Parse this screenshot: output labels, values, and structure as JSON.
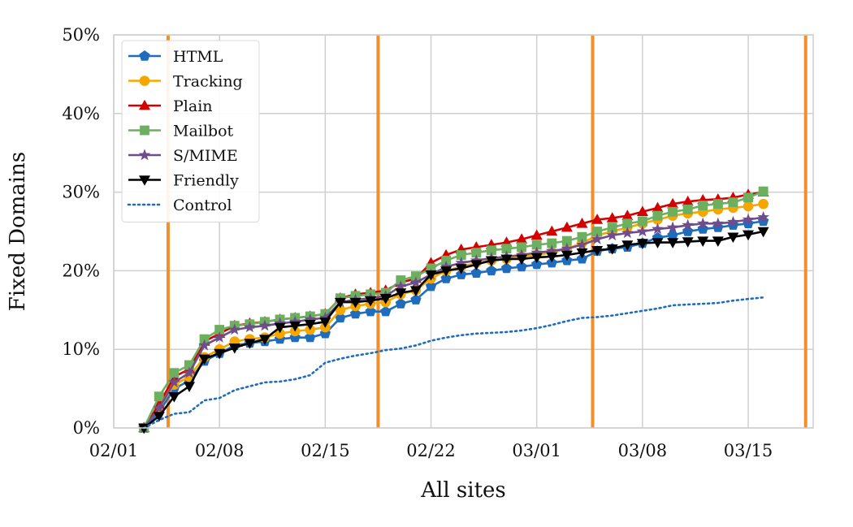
{
  "chart_data": {
    "type": "line",
    "title": "",
    "xlabel": "All sites",
    "ylabel": "Fixed Domains",
    "x_ticks": [
      {
        "day": 0,
        "label": "02/01"
      },
      {
        "day": 7,
        "label": "02/08"
      },
      {
        "day": 14,
        "label": "02/15"
      },
      {
        "day": 21,
        "label": "02/22"
      },
      {
        "day": 28,
        "label": "03/01"
      },
      {
        "day": 35,
        "label": "03/08"
      },
      {
        "day": 42,
        "label": "03/15"
      }
    ],
    "y_ticks": [
      {
        "value": 0,
        "label": "0%"
      },
      {
        "value": 10,
        "label": "10%"
      },
      {
        "value": 20,
        "label": "20%"
      },
      {
        "value": 30,
        "label": "30%"
      },
      {
        "value": 40,
        "label": "40%"
      },
      {
        "value": 50,
        "label": "50%"
      }
    ],
    "xlim": [
      0,
      46.3
    ],
    "ylim": [
      0,
      50
    ],
    "grid": true,
    "legend_position": "top-left",
    "vertical_markers": {
      "color": "#F28E2B",
      "days": [
        3.6,
        17.5,
        31.7,
        45.8
      ]
    },
    "x_days": [
      2,
      3,
      4,
      5,
      6,
      7,
      8,
      9,
      10,
      11,
      12,
      13,
      14,
      15,
      16,
      17,
      18,
      19,
      20,
      21,
      22,
      23,
      24,
      25,
      26,
      27,
      28,
      29,
      30,
      31,
      32,
      33,
      34,
      35,
      36,
      37,
      38,
      39,
      40,
      41,
      42,
      43
    ],
    "series": [
      {
        "name": "HTML",
        "color": "#1F6CBF",
        "marker": "pentagon",
        "line": "solid",
        "values": [
          0,
          2,
          5,
          6,
          8.5,
          9.5,
          10.5,
          10.8,
          11,
          11.3,
          11.5,
          11.5,
          12,
          14,
          14.5,
          14.8,
          14.8,
          15.8,
          16.3,
          18,
          19,
          19.5,
          19.7,
          20,
          20.3,
          20.5,
          20.8,
          21,
          21.3,
          21.5,
          22.5,
          22.8,
          23,
          23.5,
          24.2,
          24.5,
          25,
          25.3,
          25.5,
          25.8,
          26,
          26.3
        ]
      },
      {
        "name": "Tracking",
        "color": "#F5A700",
        "marker": "circle",
        "line": "solid",
        "values": [
          0,
          2.5,
          5.5,
          6.5,
          9,
          10,
          11,
          11.3,
          11.5,
          12,
          12.3,
          12.5,
          12.8,
          15,
          15.5,
          15.8,
          16,
          17,
          17.5,
          19,
          20,
          20.5,
          21,
          21.3,
          21.5,
          21.8,
          22,
          22.3,
          22.8,
          23.5,
          24.5,
          25,
          25.5,
          26,
          26.5,
          27,
          27.3,
          27.5,
          27.8,
          28,
          28.2,
          28.5
        ]
      },
      {
        "name": "Plain",
        "color": "#D40000",
        "marker": "triangle-up",
        "line": "solid",
        "values": [
          0,
          3,
          6.5,
          7.5,
          11,
          12,
          13,
          13.3,
          13.5,
          13.8,
          14,
          14.2,
          14.5,
          16.5,
          17,
          17.2,
          17.5,
          18.5,
          19,
          21,
          22,
          22.7,
          23,
          23.3,
          23.6,
          24,
          24.5,
          25,
          25.5,
          26,
          26.5,
          26.7,
          27,
          27.5,
          28,
          28.5,
          28.8,
          29,
          29.1,
          29.3,
          29.7,
          30
        ]
      },
      {
        "name": "Mailbot",
        "color": "#6BAF5F",
        "marker": "square",
        "line": "solid",
        "values": [
          0,
          4,
          7,
          8,
          11.3,
          12.5,
          13,
          13.2,
          13.5,
          13.8,
          14,
          14.2,
          14.5,
          16.5,
          16.8,
          17,
          17.2,
          18.8,
          19.3,
          20.3,
          21.3,
          22,
          22.3,
          22.6,
          22.8,
          23,
          23.3,
          23.5,
          23.8,
          24.3,
          25,
          25.5,
          26,
          26.3,
          27,
          27.5,
          27.8,
          28.3,
          28.5,
          28.7,
          29.3,
          30.1
        ]
      },
      {
        "name": "S/MIME",
        "color": "#6F4C8C",
        "marker": "star",
        "line": "solid",
        "values": [
          0,
          2.5,
          5.8,
          7,
          10.5,
          11.5,
          12.5,
          12.8,
          13,
          13.3,
          13.5,
          13.8,
          14,
          16,
          16.3,
          16.5,
          16.8,
          18,
          18.5,
          19.5,
          20.5,
          21,
          21.3,
          21.6,
          21.8,
          22,
          22.3,
          22.5,
          22.8,
          23.3,
          24,
          24.5,
          24.8,
          25,
          25.3,
          25.5,
          25.8,
          26,
          26,
          26.2,
          26.5,
          26.8
        ]
      },
      {
        "name": "Friendly",
        "color": "#000000",
        "marker": "triangle-down",
        "line": "solid",
        "values": [
          0,
          1.5,
          4,
          5.3,
          8.8,
          9.5,
          10.2,
          10.8,
          11.3,
          12.8,
          13,
          13.2,
          13.5,
          16,
          16,
          16.2,
          16.5,
          17.2,
          17.5,
          19.5,
          20,
          20.3,
          20.8,
          21.3,
          21.5,
          21.5,
          21.7,
          21.8,
          22,
          22.3,
          22.6,
          22.8,
          23.3,
          23.5,
          23.6,
          23.6,
          23.7,
          23.8,
          23.8,
          24.3,
          24.6,
          25
        ]
      },
      {
        "name": "Control",
        "color": "#1F6CBF",
        "marker": "none",
        "line": "dotted",
        "values": [
          0,
          1,
          1.8,
          2,
          3.5,
          3.8,
          4.8,
          5.3,
          5.8,
          5.9,
          6.2,
          6.7,
          8.3,
          8.8,
          9.2,
          9.5,
          9.9,
          10.1,
          10.5,
          11.1,
          11.5,
          11.8,
          12,
          12.1,
          12.2,
          12.4,
          12.7,
          13.1,
          13.6,
          14,
          14.1,
          14.3,
          14.6,
          14.9,
          15.2,
          15.6,
          15.7,
          15.8,
          15.9,
          16.2,
          16.4,
          16.6
        ]
      }
    ]
  }
}
